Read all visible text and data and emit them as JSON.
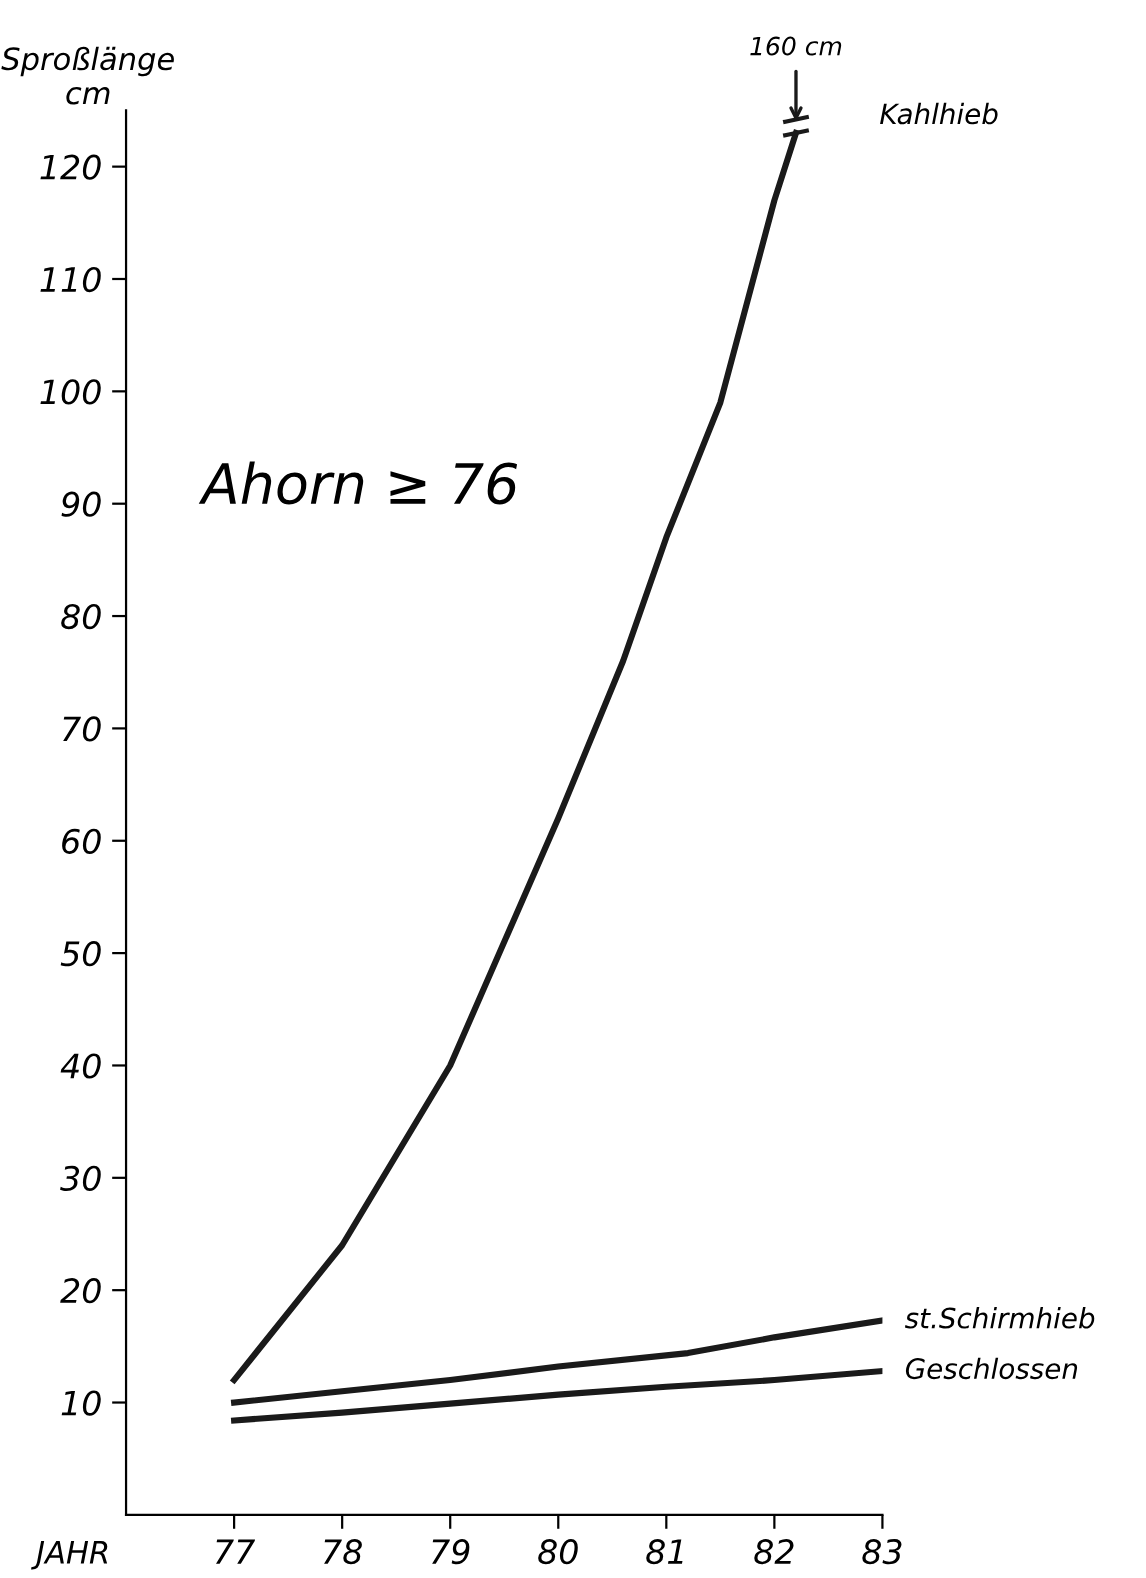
{
  "chart_data": {
    "type": "line",
    "xlabel": "JAHR",
    "ylabel": "Sproßlänge\ncm",
    "annotations": [
      "Ahorn ≥ 76",
      {
        "text": "160 cm",
        "x": 82.2,
        "y": 123
      }
    ],
    "xlim": [
      76,
      83
    ],
    "xticks": [
      77,
      78,
      79,
      80,
      81,
      82,
      83
    ],
    "ylim": [
      0,
      125
    ],
    "yticks": [
      10,
      20,
      30,
      40,
      50,
      60,
      70,
      80,
      90,
      100,
      110,
      120
    ],
    "grid": false,
    "legend": false,
    "line_style": "solid",
    "series": [
      {
        "name": "Kahlhieb",
        "color": "#1a1a1a",
        "x": [
          77,
          78,
          79,
          80,
          80.6,
          81,
          81.5,
          82,
          82.2
        ],
        "values": [
          12,
          24,
          40,
          62,
          76,
          87,
          99,
          117,
          123
        ]
      },
      {
        "name": "st.Schirmhieb",
        "color": "#1a1a1a",
        "x": [
          77,
          78,
          79,
          80,
          81.2,
          82,
          83
        ],
        "values": [
          10,
          11,
          12,
          13.2,
          14.4,
          15.8,
          17.3
        ]
      },
      {
        "name": "Geschlossen",
        "color": "#1a1a1a",
        "x": [
          77,
          78,
          79,
          80,
          81,
          82,
          83
        ],
        "values": [
          8.4,
          9.1,
          9.9,
          10.7,
          11.4,
          12,
          12.8
        ]
      }
    ]
  }
}
